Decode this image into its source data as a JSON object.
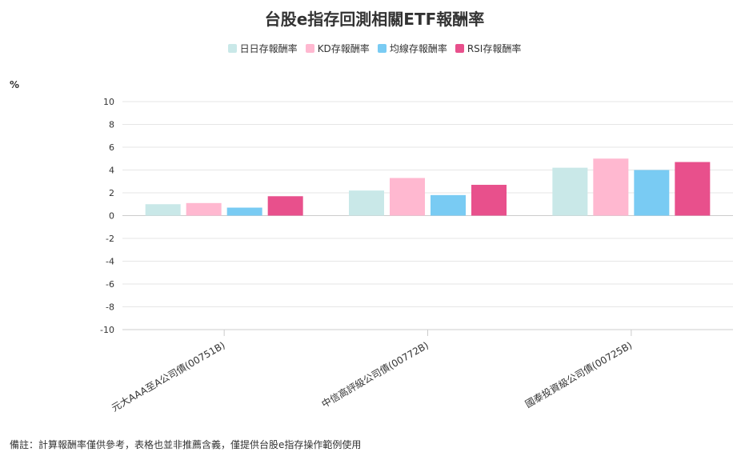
{
  "header": {
    "title": "台股e指存回測相關ETF報酬率"
  },
  "note": "備註：計算報酬率僅供參考，表格也並非推薦含義，僅提供台股e指存操作範例使用",
  "chart_data": {
    "type": "bar",
    "title": "台股e指存回測相關ETF報酬率",
    "ylabel": "%",
    "xlabel": "",
    "ylim": [
      -10,
      10
    ],
    "yticks": [
      10,
      8,
      6,
      4,
      2,
      0,
      -2,
      -4,
      -6,
      -8,
      -10
    ],
    "grid": true,
    "legend_position": "top-center",
    "categories": [
      "元大AAA至A公司債(00751B)",
      "中信高評級公司債(00772B)",
      "國泰投資級公司債(00725B)"
    ],
    "series": [
      {
        "name": "日日存報酬率",
        "color": "#c9e8e8",
        "values": [
          1.0,
          2.2,
          4.2
        ]
      },
      {
        "name": "KD存報酬率",
        "color": "#ffb8d0",
        "values": [
          1.1,
          3.3,
          5.0
        ]
      },
      {
        "name": "均線存報酬率",
        "color": "#79cbf3",
        "values": [
          0.7,
          1.8,
          4.0
        ]
      },
      {
        "name": "RSI存報酬率",
        "color": "#e8508c",
        "values": [
          1.7,
          2.7,
          4.7
        ]
      }
    ]
  }
}
